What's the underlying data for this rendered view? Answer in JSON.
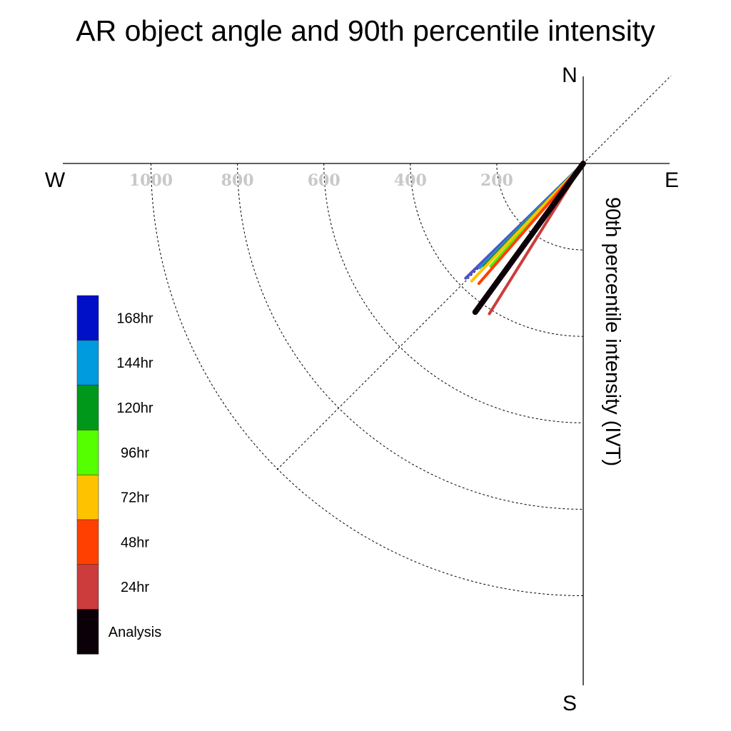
{
  "chart_data": {
    "type": "polar-quadrant",
    "title": "AR object angle and 90th percentile intensity",
    "ylabel": "90th percentile intensity (IVT)",
    "directions": {
      "north": "N",
      "south": "S",
      "east": "E",
      "west": "W"
    },
    "radial_ticks": [
      200,
      400,
      600,
      800,
      1000
    ],
    "radial_tick_labels": [
      "200",
      "400",
      "600",
      "800",
      "1000"
    ],
    "r_max": 1200,
    "legend": [
      {
        "label": "168hr",
        "color": "#0010c8"
      },
      {
        "label": "144hr",
        "color": "#009ade"
      },
      {
        "label": "120hr",
        "color": "#00981a"
      },
      {
        "label": "96hr",
        "color": "#55ff00"
      },
      {
        "label": "72hr",
        "color": "#ffc200"
      },
      {
        "label": "48hr",
        "color": "#ff4000"
      },
      {
        "label": "24hr",
        "color": "#cc3c3c"
      },
      {
        "label": "Analysis",
        "color": "#0c0008"
      }
    ],
    "series": [
      {
        "label": "168hr",
        "color": "#5050c8",
        "intensity": 380,
        "angle_deg": 45.7
      },
      {
        "label": "144hr",
        "color": "#2090c8",
        "intensity": 340,
        "angle_deg": 44.8
      },
      {
        "label": "120hr",
        "color": "#1a8a2a",
        "intensity": 330,
        "angle_deg": 44.0
      },
      {
        "label": "96hr",
        "color": "#55ee00",
        "intensity": 320,
        "angle_deg": 42.0
      },
      {
        "label": "72hr",
        "color": "#ffc200",
        "intensity": 375,
        "angle_deg": 43.5
      },
      {
        "label": "48hr",
        "color": "#ff4000",
        "intensity": 368,
        "angle_deg": 41.0
      },
      {
        "label": "24hr",
        "color": "#cc3c3c",
        "intensity": 410,
        "angle_deg": 32.0
      },
      {
        "label": "Analysis",
        "color": "#0c0008",
        "intensity": 425,
        "angle_deg": 36.0
      }
    ]
  }
}
